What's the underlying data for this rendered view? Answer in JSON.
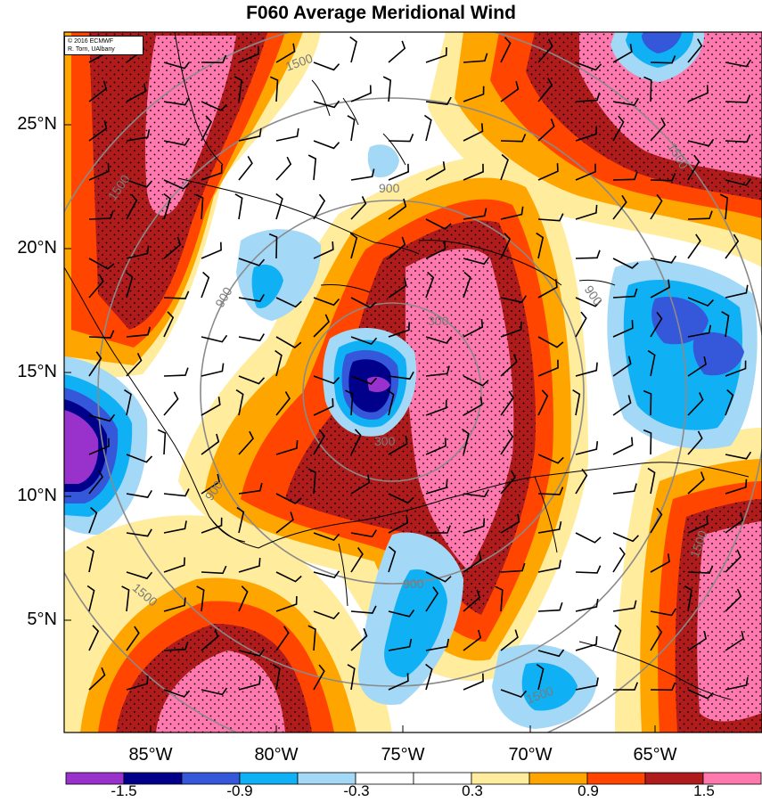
{
  "title": "F060 Average Meridional Wind",
  "credit": {
    "line1": "© 2016 ECMWF",
    "line2": "R. Torn, UAlbany"
  },
  "map": {
    "lat_labels": [
      "25°N",
      "20°N",
      "15°N",
      "10°N",
      "5°N"
    ],
    "lon_labels": [
      "85°W",
      "80°W",
      "75°W",
      "70°W",
      "65°W"
    ],
    "range_ring_labels": [
      "300",
      "300",
      "900",
      "900",
      "900",
      "900",
      "900",
      "1500",
      "1500",
      "1500",
      "1500",
      "1500",
      "1500"
    ]
  },
  "colorbar": {
    "tick_labels": [
      "-1.5",
      "-0.9",
      "-0.3",
      "0.3",
      "0.9",
      "1.5"
    ],
    "colors": [
      "#9932cc",
      "#00008b",
      "#3557d9",
      "#0fb1f4",
      "#a3d8f7",
      "#ffffff",
      "#ffffff",
      "#ffec9c",
      "#ffa500",
      "#ff4500",
      "#b01c1c",
      "#ff79ae"
    ]
  }
}
